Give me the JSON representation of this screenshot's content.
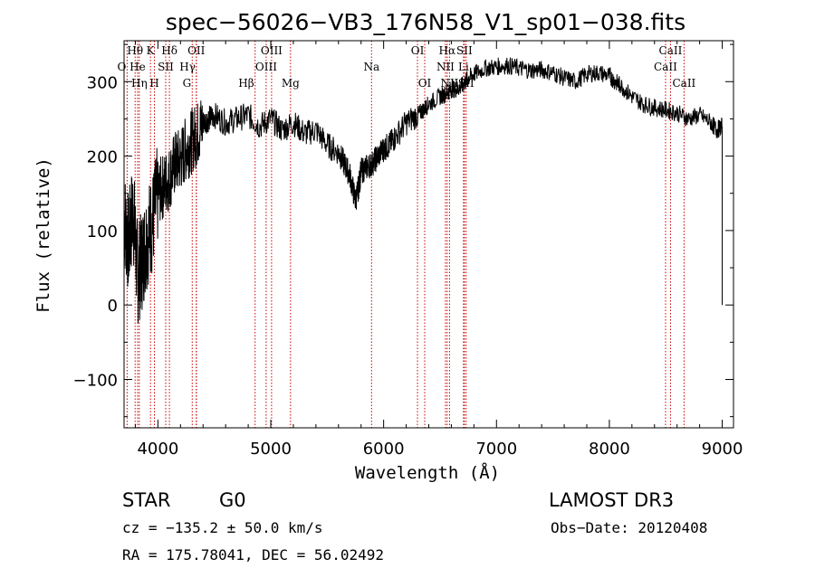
{
  "chart_data": {
    "type": "line",
    "title": "spec−56026−VB3_176N58_V1_sp01−038.fits",
    "xlabel": "Wavelength (Å)",
    "ylabel": "Flux (relative)",
    "xlim": [
      3700,
      9100
    ],
    "ylim": [
      -165,
      355
    ],
    "xticks": [
      4000,
      5000,
      6000,
      7000,
      8000,
      9000
    ],
    "yticks": [
      -100,
      0,
      100,
      200,
      300
    ],
    "xtick_labels": [
      "4000",
      "5000",
      "6000",
      "7000",
      "8000",
      "9000"
    ],
    "ytick_labels": [
      "−100",
      "0",
      "100",
      "200",
      "300"
    ],
    "spectrum": {
      "x": [
        3700,
        3740,
        3780,
        3820,
        3860,
        3900,
        3950,
        4000,
        4050,
        4100,
        4150,
        4200,
        4250,
        4300,
        4350,
        4400,
        4450,
        4500,
        4600,
        4700,
        4800,
        4900,
        5000,
        5100,
        5200,
        5300,
        5400,
        5500,
        5600,
        5650,
        5700,
        5750,
        5780,
        5800,
        5850,
        5900,
        5950,
        6000,
        6050,
        6100,
        6200,
        6300,
        6350,
        6400,
        6500,
        6560,
        6600,
        6650,
        6700,
        6750,
        6800,
        6900,
        7000,
        7100,
        7200,
        7300,
        7400,
        7500,
        7600,
        7700,
        7800,
        7900,
        8000,
        8050,
        8100,
        8200,
        8300,
        8400,
        8500,
        8600,
        8700,
        8800,
        8900,
        8950,
        9000
      ],
      "y": [
        120,
        80,
        130,
        40,
        60,
        90,
        110,
        150,
        160,
        170,
        190,
        195,
        210,
        220,
        230,
        245,
        250,
        255,
        245,
        250,
        255,
        240,
        250,
        235,
        245,
        230,
        235,
        215,
        205,
        190,
        175,
        140,
        160,
        180,
        185,
        190,
        200,
        210,
        215,
        225,
        245,
        255,
        262,
        270,
        280,
        285,
        290,
        290,
        295,
        305,
        310,
        318,
        320,
        322,
        318,
        315,
        316,
        312,
        305,
        300,
        310,
        312,
        308,
        300,
        295,
        280,
        270,
        265,
        262,
        258,
        250,
        255,
        245,
        235,
        240
      ]
    },
    "lines": [
      {
        "label": "Hθ",
        "x": 3798,
        "row": 0,
        "anchor": "middle"
      },
      {
        "label": "O",
        "x": 3727,
        "row": 1,
        "anchor": "end"
      },
      {
        "label": "He",
        "x": 3820,
        "row": 1,
        "anchor": "middle"
      },
      {
        "label": "Hη",
        "x": 3835,
        "row": 2,
        "anchor": "middle"
      },
      {
        "label": "K",
        "x": 3934,
        "row": 0,
        "anchor": "middle"
      },
      {
        "label": "H",
        "x": 3969,
        "row": 2,
        "anchor": "middle"
      },
      {
        "label": "SII",
        "x": 4069,
        "row": 1,
        "anchor": "middle"
      },
      {
        "label": "Hδ",
        "x": 4102,
        "row": 0,
        "anchor": "middle"
      },
      {
        "label": "OII",
        "x": 4340,
        "row": 0,
        "anchor": "middle"
      },
      {
        "label": "Hγ",
        "x": 4341,
        "row": 1,
        "anchor": "end"
      },
      {
        "label": "G",
        "x": 4304,
        "row": 2,
        "anchor": "end"
      },
      {
        "label": "Hβ",
        "x": 4861,
        "row": 2,
        "anchor": "end"
      },
      {
        "label": "OIII",
        "x": 4959,
        "row": 1,
        "anchor": "middle"
      },
      {
        "label": "OIII",
        "x": 5007,
        "row": 0,
        "anchor": "middle"
      },
      {
        "label": "Mg",
        "x": 5175,
        "row": 2,
        "anchor": "middle"
      },
      {
        "label": "Na",
        "x": 5893,
        "row": 1,
        "anchor": "middle"
      },
      {
        "label": "OI",
        "x": 6300,
        "row": 0,
        "anchor": "middle"
      },
      {
        "label": "OI",
        "x": 6364,
        "row": 2,
        "anchor": "middle"
      },
      {
        "label": "Hα",
        "x": 6563,
        "row": 0,
        "anchor": "middle"
      },
      {
        "label": "NII",
        "x": 6548,
        "row": 1,
        "anchor": "middle"
      },
      {
        "label": "NII",
        "x": 6584,
        "row": 2,
        "anchor": "middle"
      },
      {
        "label": "SII",
        "x": 6716,
        "row": 0,
        "anchor": "middle"
      },
      {
        "label": "Li",
        "x": 6708,
        "row": 1,
        "anchor": "middle"
      },
      {
        "label": "SII",
        "x": 6731,
        "row": 2,
        "anchor": "middle"
      },
      {
        "label": "CaII",
        "x": 8542,
        "row": 0,
        "anchor": "middle"
      },
      {
        "label": "CaII",
        "x": 8498,
        "row": 1,
        "anchor": "middle"
      },
      {
        "label": "CaII",
        "x": 8662,
        "row": 2,
        "anchor": "middle"
      }
    ],
    "line_color": "#cc0000"
  },
  "info": {
    "class": "STAR",
    "subclass": "G0",
    "survey": "LAMOST DR3",
    "cz": "cz = −135.2 ± 50.0 km/s",
    "obs_date": "Obs−Date: 20120408",
    "radec": "RA = 175.78041, DEC =  56.02492"
  }
}
